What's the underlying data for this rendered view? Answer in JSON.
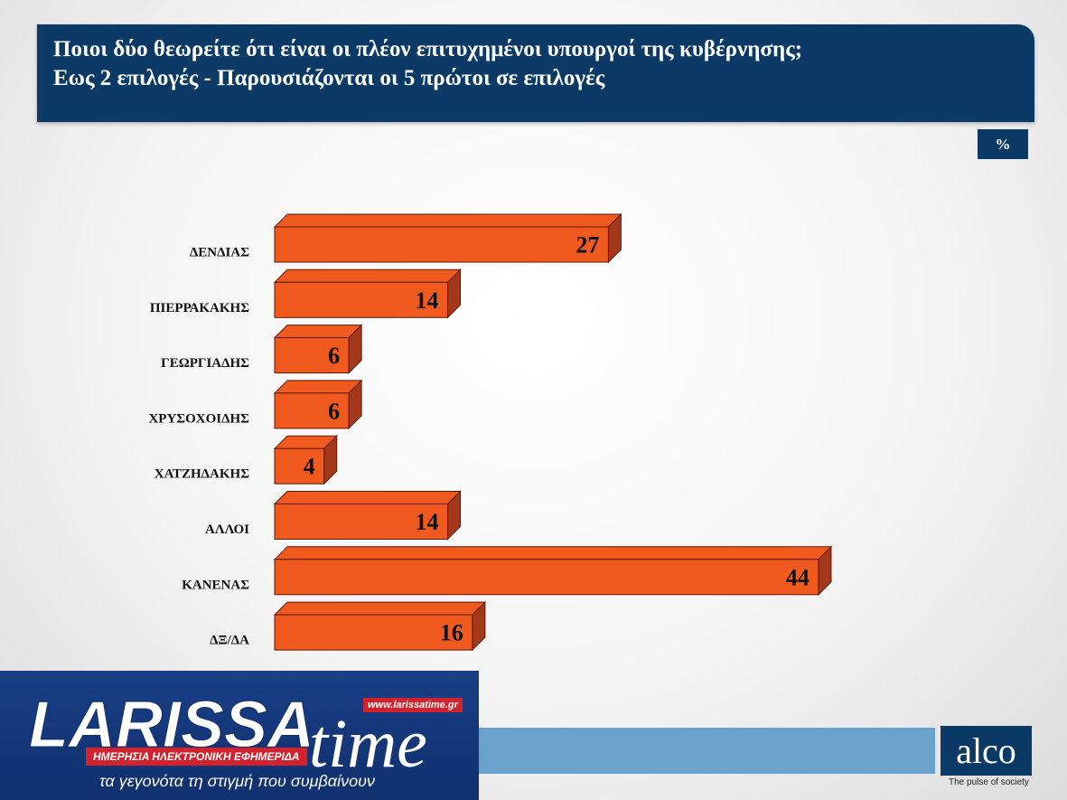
{
  "header": {
    "title_line1": "Ποιοι δύο θεωρείτε ότι είναι οι πλέον επιτυχημένοι υπουργοί της κυβέρνησης;",
    "title_line2": "Εως 2 επιλογές - Παρουσιάζονται οι 5 πρώτοι σε επιλογές"
  },
  "unit_badge": "%",
  "chart_data": {
    "type": "bar",
    "orientation": "horizontal",
    "categories": [
      "ΔΕΝΔΙΑΣ",
      "ΠΙΕΡΡΑΚΑΚΗΣ",
      "ΓΕΩΡΓΙΑΔΗΣ",
      "ΧΡΥΣΟΧΟΙΔΗΣ",
      "ΧΑΤΖΗΔΑΚΗΣ",
      "ΑΛΛΟΙ",
      "ΚΑΝΕΝΑΣ",
      "ΔΞ/ΔΑ"
    ],
    "values": [
      27,
      14,
      6,
      6,
      4,
      14,
      44,
      16
    ],
    "title": "",
    "xlabel": "",
    "ylabel": "",
    "bar_color": "#f05a1e",
    "bar_side_color": "#a3381a",
    "data_labels": true,
    "grid": false
  },
  "branding": {
    "alco_logo": "alco",
    "alco_tagline": "The pulse of society",
    "larissa_name": "LARISSA",
    "larissa_time": "time",
    "larissa_url": "www.larissatime.gr",
    "larissa_subtitle": "ΗΜΕΡΗΣΙΑ ΗΛΕΚΤΡΟΝΙΚΗ ΕΦΗΜΕΡΙΔΑ",
    "larissa_tagline": "τα γεγονότα τη στιγμή που συμβαίνουν",
    "primary_color": "#0c3a66",
    "accent_red": "#d3222b"
  }
}
